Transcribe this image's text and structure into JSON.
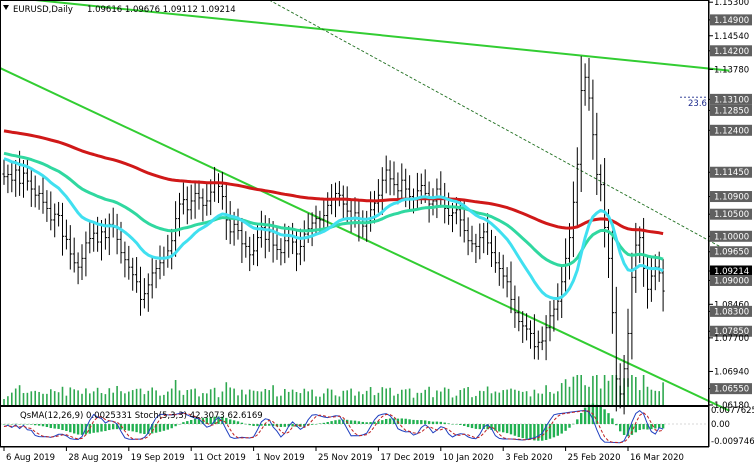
{
  "header": {
    "symbol_timeframe": "EURUSD,Daily",
    "ohlc": "1.09616 1.09676 1.09112 1.09214",
    "indicator_label": "QsMA(12,26,9) 0.0025331  Stoch(5,3,3) 42.3073 62.6169"
  },
  "price_axis": {
    "labels": [
      {
        "text": "1.15300",
        "value": 1.153,
        "boxed": false
      },
      {
        "text": "1.14900",
        "value": 1.149,
        "boxed": true
      },
      {
        "text": "1.14540",
        "value": 1.1454,
        "boxed": false
      },
      {
        "text": "1.14200",
        "value": 1.142,
        "boxed": true
      },
      {
        "text": "1.13780",
        "value": 1.1378,
        "boxed": false
      },
      {
        "text": "1.13100",
        "value": 1.131,
        "boxed": true
      },
      {
        "text": "1.12850",
        "value": 1.1285,
        "boxed": true
      },
      {
        "text": "1.12400",
        "value": 1.124,
        "boxed": true
      },
      {
        "text": "1.11450",
        "value": 1.1145,
        "boxed": true
      },
      {
        "text": "1.10900",
        "value": 1.109,
        "boxed": true
      },
      {
        "text": "1.10500",
        "value": 1.105,
        "boxed": true
      },
      {
        "text": "1.10000",
        "value": 1.1,
        "boxed": true
      },
      {
        "text": "1.09650",
        "value": 1.0965,
        "boxed": true
      },
      {
        "text": "1.09214",
        "value": 1.09214,
        "boxed": true,
        "current": true
      },
      {
        "text": "1.09000",
        "value": 1.09,
        "boxed": true
      },
      {
        "text": "1.08460",
        "value": 1.0846,
        "boxed": false
      },
      {
        "text": "1.08300",
        "value": 1.083,
        "boxed": true
      },
      {
        "text": "1.07850",
        "value": 1.0785,
        "boxed": true
      },
      {
        "text": "1.07700",
        "value": 1.077,
        "boxed": false
      },
      {
        "text": "1.06940",
        "value": 1.0694,
        "boxed": false
      },
      {
        "text": "1.06550",
        "value": 1.0655,
        "boxed": true
      },
      {
        "text": "1.06180",
        "value": 1.0618,
        "boxed": false
      }
    ]
  },
  "fib_label": "23.6",
  "indicator_axis": {
    "labels": [
      "0.0077625",
      "0.00",
      "-0.009746"
    ]
  },
  "time_axis": {
    "labels": [
      "6 Aug 2019",
      "28 Aug 2019",
      "19 Sep 2019",
      "11 Oct 2019",
      "1 Nov 2019",
      "25 Nov 2019",
      "17 Dec 2019",
      "10 Jan 2020",
      "3 Feb 2020",
      "25 Feb 2020",
      "16 Mar 2020"
    ]
  },
  "colors": {
    "background": "#ffffff",
    "candles": "#000000",
    "ema_fast": "#40e0f0",
    "ema_mid": "#30d8a0",
    "ema_slow": "#d01818",
    "channel": "#32cd32",
    "volume": "#2fa84f",
    "macd_hist": "#20b050",
    "stoch_main": "#2040c0",
    "stoch_signal": "#c02020",
    "label_box": "#606060",
    "current_box": "#000000"
  },
  "chart_data": {
    "type": "candlestick",
    "symbol": "EURUSD",
    "timeframe": "Daily",
    "last_bar": {
      "open": 1.09616,
      "high": 1.09676,
      "low": 1.09112,
      "close": 1.09214
    },
    "ylim": [
      1.0618,
      1.1535
    ],
    "x_tick_labels": [
      "6 Aug 2019",
      "28 Aug 2019",
      "19 Sep 2019",
      "11 Oct 2019",
      "1 Nov 2019",
      "25 Nov 2019",
      "17 Dec 2019",
      "10 Jan 2020",
      "3 Feb 2020",
      "25 Feb 2020",
      "16 Mar 2020"
    ],
    "x_tick_positions": [
      0,
      16,
      32,
      48,
      64,
      80,
      96,
      112,
      128,
      144,
      160
    ],
    "closes": [
      1.118,
      1.1185,
      1.1172,
      1.1195,
      1.1165,
      1.1188,
      1.117,
      1.1152,
      1.1138,
      1.1142,
      1.1122,
      1.1108,
      1.1082,
      1.1095,
      1.1092,
      1.1045,
      1.1038,
      1.1005,
      1.0985,
      1.0975,
      1.0995,
      1.103,
      1.104,
      1.1052,
      1.1032,
      1.1055,
      1.1042,
      1.1072,
      1.1065,
      1.1038,
      1.1008,
      1.0992,
      1.0975,
      1.0958,
      1.0942,
      1.0902,
      1.0915,
      1.0935,
      1.0962,
      1.0972,
      1.0985,
      1.0995,
      1.1012,
      1.1035,
      1.1085,
      1.1118,
      1.1128,
      1.1105,
      1.1125,
      1.1142,
      1.1132,
      1.1115,
      1.1125,
      1.1145,
      1.1165,
      1.1158,
      1.1135,
      1.1082,
      1.1055,
      1.1072,
      1.1058,
      1.1028,
      1.1022,
      1.1003,
      1.1012,
      1.1042,
      1.1065,
      1.1038,
      1.1055,
      1.1025,
      1.1015,
      1.1008,
      1.1035,
      1.1045,
      1.1032,
      1.1005,
      1.1022,
      1.105,
      1.1062,
      1.1075,
      1.1085,
      1.1082,
      1.1092,
      1.1115,
      1.1128,
      1.1142,
      1.1138,
      1.1118,
      1.1102,
      1.1085,
      1.1098,
      1.1075,
      1.1068,
      1.1082,
      1.1105,
      1.112,
      1.1138,
      1.1172,
      1.1195,
      1.1175,
      1.1162,
      1.1148,
      1.1172,
      1.1152,
      1.1135,
      1.113,
      1.1148,
      1.116,
      1.1142,
      1.1118,
      1.1125,
      1.1152,
      1.1135,
      1.1108,
      1.1092,
      1.1098,
      1.1105,
      1.1082,
      1.1058,
      1.1035,
      1.1028,
      1.1022,
      1.1042,
      1.1055,
      1.103,
      1.1008,
      1.0985,
      1.0972,
      1.0955,
      1.0942,
      1.0902,
      1.0872,
      1.0852,
      1.0842,
      1.0835,
      1.0825,
      1.0795,
      1.0805,
      1.0808,
      1.0838,
      1.0865,
      1.088,
      1.0898,
      1.0942,
      1.0995,
      1.1042,
      1.1122,
      1.1208,
      1.1375,
      1.1405,
      1.1358,
      1.1275,
      1.1185,
      1.1162,
      1.1065,
      1.0995,
      1.0872,
      1.0722,
      1.0688,
      1.0745,
      1.0825,
      1.0952,
      1.1025,
      1.1042,
      1.0972,
      1.0925,
      1.0955,
      1.0975,
      1.0962,
      1.0921
    ],
    "indicators": [
      {
        "name": "Moving average (fast)",
        "color": "#40e0f0"
      },
      {
        "name": "Moving average (medium)",
        "color": "#30d8a0"
      },
      {
        "name": "Moving average (slow)",
        "color": "#d01818"
      },
      {
        "name": "MACD histogram",
        "value": 0.0025331,
        "color": "#20b050"
      },
      {
        "name": "Stoch(5,3,3)",
        "values": [
          42.3073,
          62.6169
        ],
        "colors": [
          "#2040c0",
          "#c02020"
        ]
      }
    ],
    "channel_lines": [
      {
        "name": "descending channel upper",
        "points": [
          {
            "bar": 8,
            "price": 1.1535
          },
          {
            "bar": 186,
            "price": 1.1375
          }
        ]
      },
      {
        "name": "descending channel lower",
        "points": [
          {
            "bar": -2,
            "price": 1.1385
          },
          {
            "bar": 186,
            "price": 1.0605
          }
        ]
      },
      {
        "name": "thin trendline",
        "points": [
          {
            "bar": 68,
            "price": 1.1535
          },
          {
            "bar": 186,
            "price": 1.0965
          }
        ]
      }
    ],
    "fibonacci": {
      "label": "23.6",
      "price": 1.1315
    },
    "indicator_axis": {
      "max": 0.0077625,
      "zero": 0.0,
      "min": -0.009746
    },
    "grid": false
  }
}
